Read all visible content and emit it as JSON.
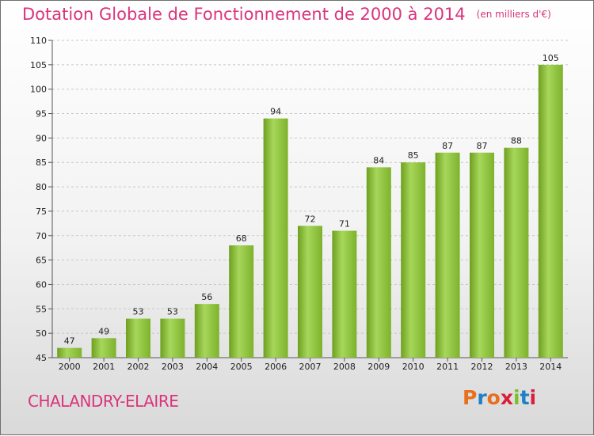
{
  "header": {
    "title": "Dotation Globale de Fonctionnement de 2000 à 2014",
    "unit": "(en milliers d'€)"
  },
  "footer": {
    "commune": "CHALANDRY-ELAIRE",
    "logo_text": "Proxiti",
    "logo_colors": [
      "#e8701d",
      "#1f7fc7",
      "#e8701d",
      "#d91e3c",
      "#7bbf2a",
      "#1f7fc7",
      "#d91e3c"
    ]
  },
  "colors": {
    "title": "#d9347c",
    "bar_light": "#a6d75b",
    "bar_dark": "#6e9f1f"
  },
  "chart_data": {
    "type": "bar",
    "title": "Dotation Globale de Fonctionnement de 2000 à 2014",
    "subtitle": "(en milliers d'€)",
    "xlabel": "",
    "ylabel": "",
    "categories": [
      "2000",
      "2001",
      "2002",
      "2003",
      "2004",
      "2005",
      "2006",
      "2007",
      "2008",
      "2009",
      "2010",
      "2011",
      "2012",
      "2013",
      "2014"
    ],
    "values": [
      47,
      49,
      53,
      53,
      56,
      68,
      94,
      72,
      71,
      84,
      85,
      87,
      87,
      88,
      105
    ],
    "ylim": [
      45,
      110
    ],
    "yticks": [
      45,
      50,
      55,
      60,
      65,
      70,
      75,
      80,
      85,
      90,
      95,
      100,
      105,
      110
    ],
    "grid": "horizontal dashed",
    "legend": "none"
  }
}
